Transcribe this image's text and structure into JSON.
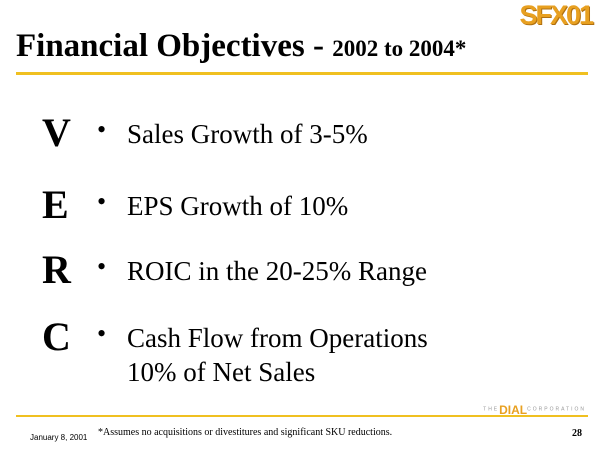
{
  "logo": "SFX01",
  "title": {
    "main": "Financial Objectives - ",
    "sub": "2002 to 2004*"
  },
  "items": [
    {
      "letter": "V",
      "bullet": "•",
      "lines": [
        "Sales Growth of 3-5%"
      ]
    },
    {
      "letter": "E",
      "bullet": "•",
      "lines": [
        "EPS Growth of 10%"
      ]
    },
    {
      "letter": "R",
      "bullet": "•",
      "lines": [
        "ROIC in the 20-25% Range"
      ]
    },
    {
      "letter": "C",
      "bullet": "•",
      "lines": [
        "Cash Flow from Operations",
        "10% of Net Sales"
      ]
    }
  ],
  "footer": {
    "date": "January 8, 2001",
    "footnote": "*Assumes no acquisitions or divestitures and significant SKU reductions.",
    "company_prefix": "THE",
    "company_brand": "DIAL",
    "company_suffix": "CORPORATION",
    "page_number": "28"
  },
  "colors": {
    "accent_rule": "#f0c020",
    "logo": "#e8a020"
  }
}
